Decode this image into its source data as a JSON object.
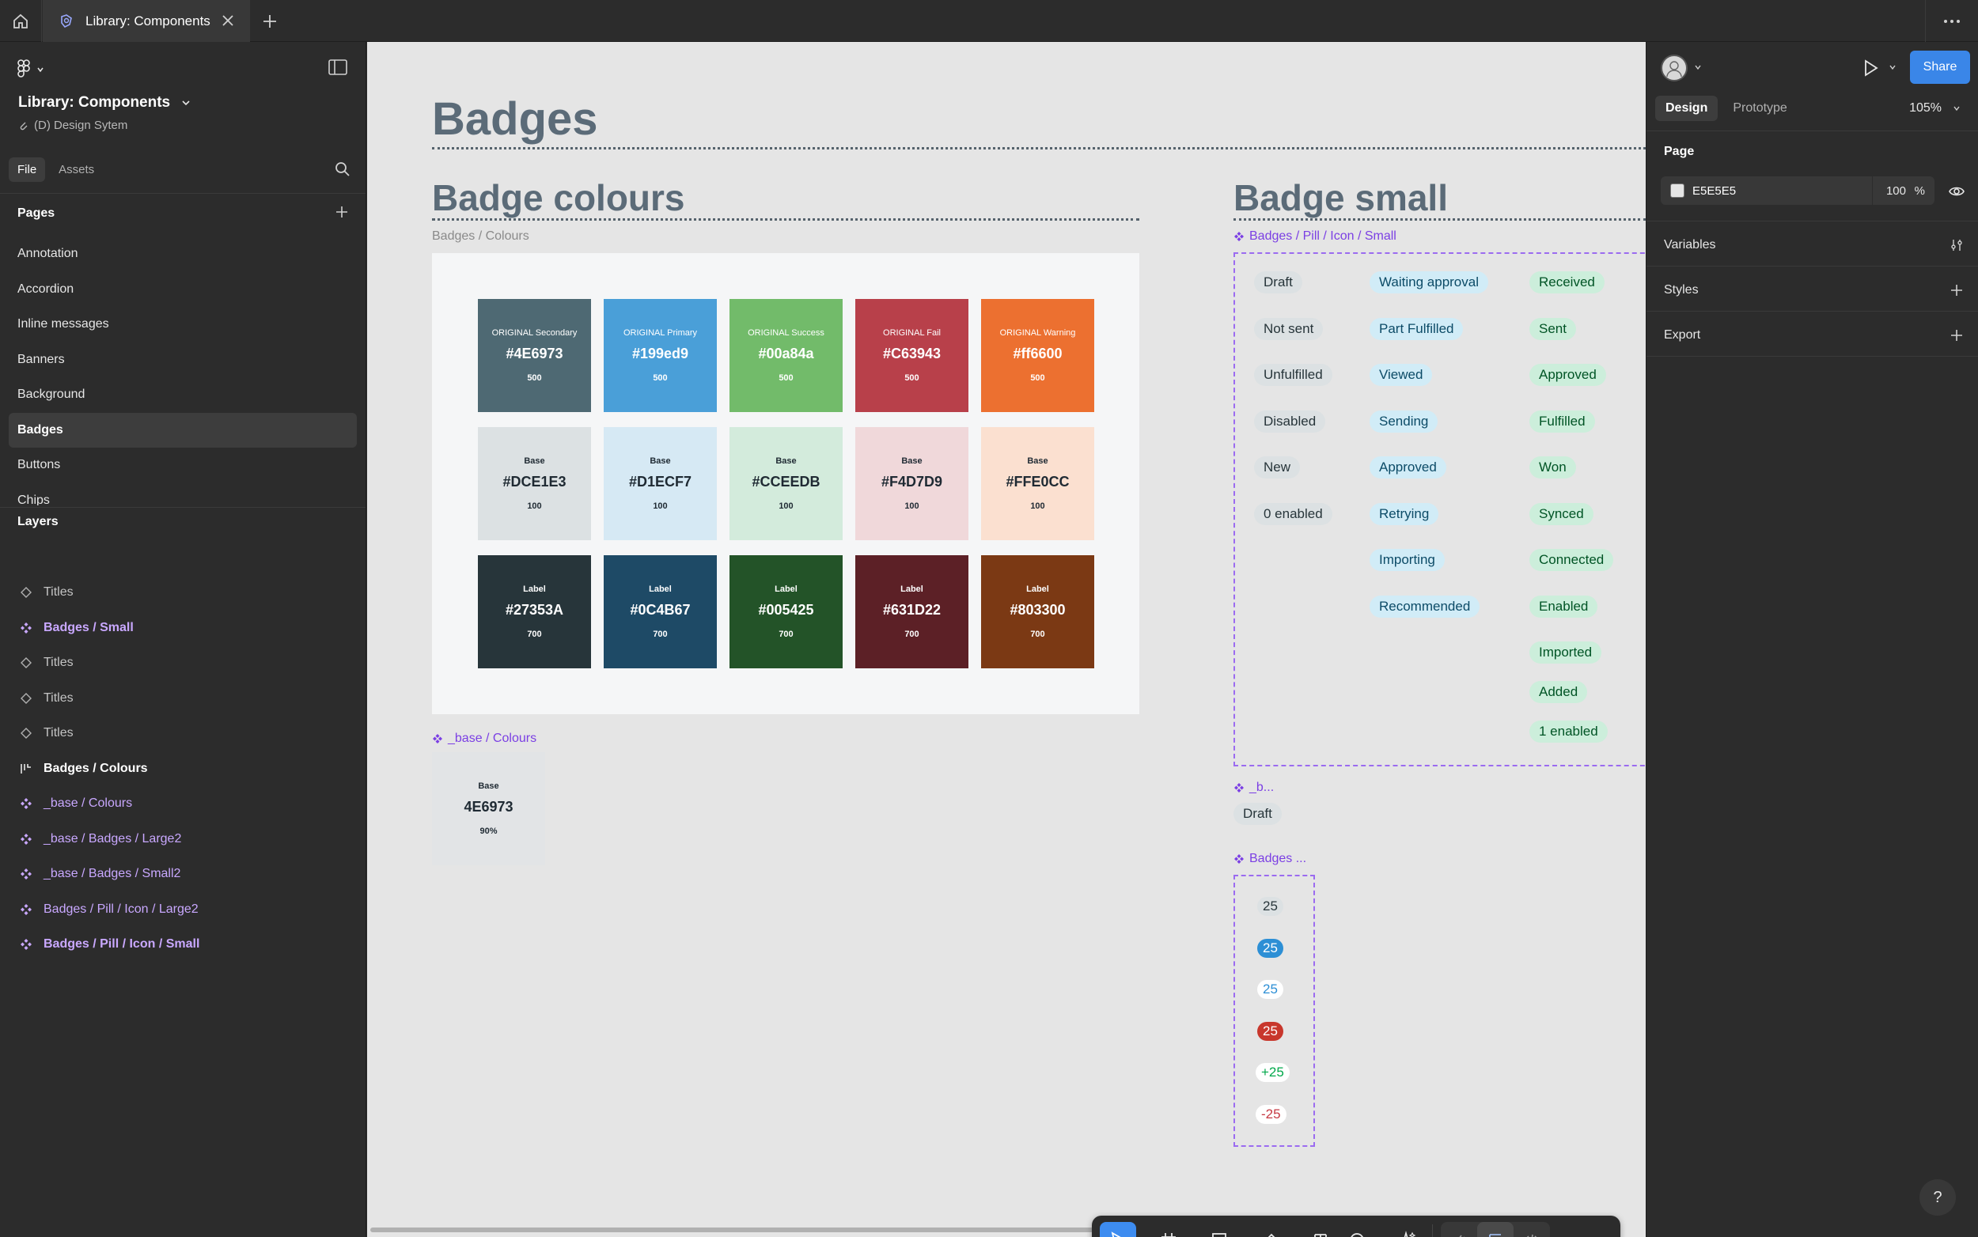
{
  "tabbar": {
    "tab_title": "Library: Components"
  },
  "left_panel": {
    "file_title": "Library: Components",
    "project": "(D) Design Sytem",
    "tabs": [
      "File",
      "Assets"
    ],
    "pages_title": "Pages",
    "pages": [
      "Annotation",
      "Accordion",
      "Inline messages",
      "Banners",
      "Background",
      "Badges",
      "Buttons",
      "Chips"
    ],
    "active_page": "Badges",
    "layers_title": "Layers",
    "layers": [
      {
        "label": "Titles",
        "kind": "component-outline"
      },
      {
        "label": "Badges / Small",
        "kind": "component"
      },
      {
        "label": "Titles",
        "kind": "component-outline"
      },
      {
        "label": "Titles",
        "kind": "component-outline"
      },
      {
        "label": "Titles",
        "kind": "component-outline"
      },
      {
        "label": "Badges / Colours",
        "kind": "frame"
      },
      {
        "label": "_base / Colours",
        "kind": "component"
      },
      {
        "label": "_base / Badges / Large2",
        "kind": "component"
      },
      {
        "label": "_base / Badges / Small2",
        "kind": "component"
      },
      {
        "label": "Badges / Pill / Icon / Large2",
        "kind": "component"
      },
      {
        "label": "Badges / Pill / Icon / Small",
        "kind": "component"
      }
    ]
  },
  "canvas": {
    "page_title": "Badges",
    "colours_title": "Badge colours",
    "colours_frame_label": "Badges / Colours",
    "swatches": [
      [
        {
          "label": "ORIGINAL Secondary",
          "hex": "#4E6973",
          "num": "500",
          "bg": "#4e6973",
          "fg": "#ffffff"
        },
        {
          "label": "ORIGINAL Primary",
          "hex": "#199ed9",
          "num": "500",
          "bg": "#4a9fd8",
          "fg": "#ffffff"
        },
        {
          "label": "ORIGINAL Success",
          "hex": "#00a84a",
          "num": "500",
          "bg": "#72bb6a",
          "fg": "#ffffff"
        },
        {
          "label": "ORIGINAL Fail",
          "hex": "#C63943",
          "num": "500",
          "bg": "#b8404a",
          "fg": "#ffffff"
        },
        {
          "label": "ORIGINAL Warning",
          "hex": "#ff6600",
          "num": "500",
          "bg": "#ec7030",
          "fg": "#ffffff"
        }
      ],
      [
        {
          "label": "Base",
          "hex": "#DCE1E3",
          "num": "100",
          "bg": "#dce1e3",
          "fg": "#1f2a33"
        },
        {
          "label": "Base",
          "hex": "#D1ECF7",
          "num": "100",
          "bg": "#d6e9f4",
          "fg": "#1f2a33"
        },
        {
          "label": "Base",
          "hex": "#CCEEDB",
          "num": "100",
          "bg": "#d3ebdc",
          "fg": "#1f2a33"
        },
        {
          "label": "Base",
          "hex": "#F4D7D9",
          "num": "100",
          "bg": "#f0d8da",
          "fg": "#1f2a33"
        },
        {
          "label": "Base",
          "hex": "#FFE0CC",
          "num": "100",
          "bg": "#fbe0d0",
          "fg": "#1f2a33"
        }
      ],
      [
        {
          "label": "Label",
          "hex": "#27353A",
          "num": "700",
          "bg": "#27353a",
          "fg": "#ffffff"
        },
        {
          "label": "Label",
          "hex": "#0C4B67",
          "num": "700",
          "bg": "#1e4a66",
          "fg": "#ffffff"
        },
        {
          "label": "Label",
          "hex": "#005425",
          "num": "700",
          "bg": "#235328",
          "fg": "#ffffff"
        },
        {
          "label": "Label",
          "hex": "#631D22",
          "num": "700",
          "bg": "#5c2026",
          "fg": "#ffffff"
        },
        {
          "label": "Label",
          "hex": "#803300",
          "num": "700",
          "bg": "#7b3914",
          "fg": "#ffffff"
        }
      ]
    ],
    "base_colours_label": "_base / Colours",
    "base_card": {
      "label": "Base",
      "hex": "4E6973",
      "pct": "90%"
    },
    "small_title": "Badge small",
    "small_frame_label": "Badges / Pill / Icon / Small",
    "badge_columns": [
      {
        "variant": "gray",
        "items": [
          "Draft",
          "Not sent",
          "Unfulfilled",
          "Disabled",
          "New",
          "0 enabled"
        ]
      },
      {
        "variant": "blue",
        "items": [
          "Waiting approval",
          "Part Fulfilled",
          "Viewed",
          "Sending",
          "Approved",
          "Retrying",
          "Importing",
          "Recommended"
        ]
      },
      {
        "variant": "green",
        "items": [
          "Received",
          "Sent",
          "Approved",
          "Fulfilled",
          "Won",
          "Synced",
          "Connected",
          "Enabled",
          "Imported",
          "Added",
          "1 enabled"
        ]
      }
    ],
    "small_base_label": "_b...",
    "small_base_badge": "Draft",
    "count_label": "Badges ...",
    "counts": [
      {
        "text": "25",
        "bg": "#dce1e3",
        "fg": "#27353a"
      },
      {
        "text": "25",
        "bg": "#2d8fd5",
        "fg": "#ffffff"
      },
      {
        "text": "25",
        "bg": "#ffffff",
        "fg": "#2d8fd5"
      },
      {
        "text": "25",
        "bg": "#c8372c",
        "fg": "#ffffff"
      },
      {
        "text": "+25",
        "bg": "#ffffff",
        "fg": "#00a84a"
      },
      {
        "text": "-25",
        "bg": "#ffffff",
        "fg": "#c63943"
      }
    ]
  },
  "right_panel": {
    "share": "Share",
    "tabs": [
      "Design",
      "Prototype"
    ],
    "zoom": "105%",
    "page_section": "Page",
    "page_color": "E5E5E5",
    "page_opacity": "100",
    "page_opacity_unit": "%",
    "variables": "Variables",
    "styles": "Styles",
    "export": "Export",
    "help": "?"
  }
}
